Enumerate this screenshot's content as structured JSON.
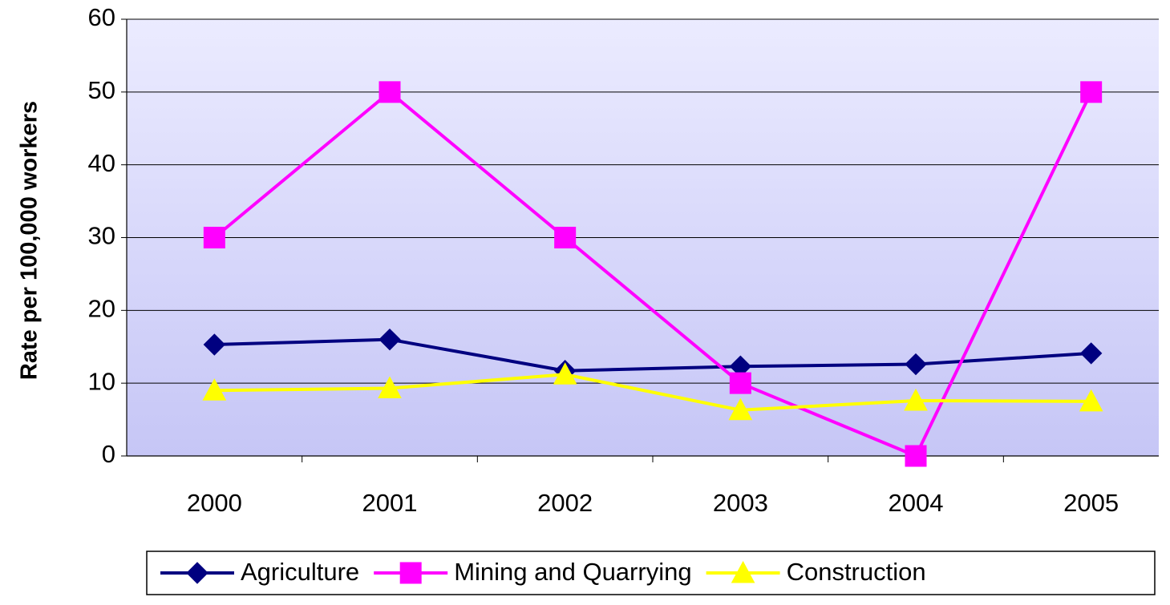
{
  "chart_data": {
    "type": "line",
    "y_label": "Rate per 100,000 workers",
    "categories": [
      "2000",
      "2001",
      "2002",
      "2003",
      "2004",
      "2005"
    ],
    "series": [
      {
        "name": "Agriculture",
        "color": "#000080",
        "marker": "diamond",
        "values": [
          15.3,
          16.0,
          11.7,
          12.3,
          12.6,
          14.1
        ]
      },
      {
        "name": "Mining and Quarrying",
        "color": "#ff00ff",
        "marker": "square",
        "values": [
          30,
          50,
          30,
          10,
          0,
          50
        ]
      },
      {
        "name": "Construction",
        "color": "#ffff00",
        "marker": "triangle",
        "values": [
          9.0,
          9.3,
          11.2,
          6.3,
          7.6,
          7.5
        ]
      }
    ],
    "ylim": [
      0,
      60
    ],
    "yticks": [
      0,
      10,
      20,
      30,
      40,
      50,
      60
    ],
    "grid": true,
    "legend": "bottom"
  }
}
